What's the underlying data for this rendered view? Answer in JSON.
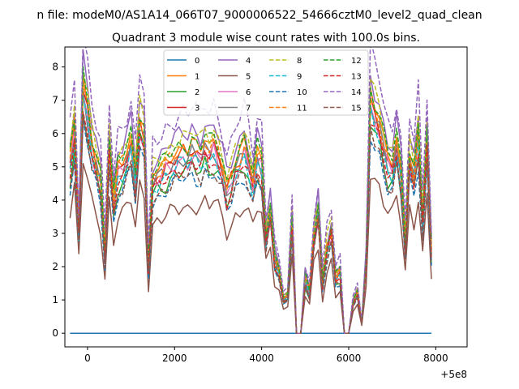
{
  "suptitle": "n file: modeM0/AS1A14_066T07_9000006522_54666cztM0_level2_quad_clean",
  "chart_data": {
    "type": "line",
    "title": "Quadrant 3 module wise count rates with 100.0s bins.",
    "xlabel": "",
    "ylabel": "",
    "x_offset_label": "+5e8",
    "xlim": [
      -520,
      8720
    ],
    "ylim": [
      -0.41,
      8.6
    ],
    "xticks": [
      0,
      2000,
      4000,
      6000,
      8000
    ],
    "xtick_labels": [
      "0",
      "2000",
      "4000",
      "6000",
      "8000"
    ],
    "yticks": [
      0,
      1,
      2,
      3,
      4,
      5,
      6,
      7,
      8
    ],
    "ytick_labels": [
      "0",
      "1",
      "2",
      "3",
      "4",
      "5",
      "6",
      "7",
      "8"
    ],
    "grid": false,
    "legend_position": "top-center",
    "x_start": -400,
    "x_step": 100,
    "gap_points": [
      48,
      63
    ],
    "profile_values": [
      5.0,
      6.0,
      3.0,
      7.2,
      6.5,
      5.5,
      5.0,
      4.5,
      2.3,
      5.5,
      3.8,
      4.8,
      4.9,
      5.2,
      5.6,
      4.5,
      6.2,
      5.8,
      2.0,
      4.5,
      4.6,
      4.7,
      4.9,
      5.0,
      5.1,
      5.2,
      5.3,
      5.2,
      5.4,
      5.3,
      5.2,
      5.5,
      5.3,
      5.5,
      5.2,
      4.8,
      4.2,
      4.5,
      4.9,
      5.1,
      5.4,
      5.0,
      4.4,
      5.2,
      5.0,
      2.8,
      3.6,
      2.2,
      1.8,
      1.0,
      1.1,
      3.3,
      0.0,
      0.0,
      1.6,
      1.2,
      2.8,
      3.6,
      1.5,
      2.5,
      3.0,
      1.6,
      1.8,
      0.0,
      0.0,
      0.9,
      1.2,
      0.3,
      2.1,
      6.8,
      6.4,
      6.1,
      5.5,
      5.0,
      4.9,
      5.6,
      4.7,
      2.6,
      5.2,
      4.6,
      5.8,
      3.3,
      5.7,
      2.4
    ],
    "series": [
      {
        "name": "0",
        "color": "#1f77b4",
        "dash": false,
        "constant": 0.0
      },
      {
        "name": "1",
        "color": "#ff7f0e",
        "dash": false,
        "scale": 1.06,
        "jitter": 0.15
      },
      {
        "name": "2",
        "color": "#2ca02c",
        "dash": false,
        "scale": 0.93,
        "jitter": 0.25
      },
      {
        "name": "3",
        "color": "#d62728",
        "dash": false,
        "scale": 1.02,
        "jitter": 0.18
      },
      {
        "name": "4",
        "color": "#9467bd",
        "dash": false,
        "scale": 1.14,
        "jitter": 0.22
      },
      {
        "name": "5",
        "color": "#8c564b",
        "dash": false,
        "scale": 0.72,
        "jitter": 0.2
      },
      {
        "name": "6",
        "color": "#e377c2",
        "dash": false,
        "scale": 0.99,
        "jitter": 0.2
      },
      {
        "name": "7",
        "color": "#7f7f7f",
        "dash": false,
        "scale": 1.0,
        "jitter": 0.22
      },
      {
        "name": "8",
        "color": "#bcbd22",
        "dash": true,
        "scale": 1.12,
        "jitter": 0.2
      },
      {
        "name": "9",
        "color": "#17becf",
        "dash": true,
        "scale": 0.97,
        "jitter": 0.2
      },
      {
        "name": "10",
        "color": "#1f77b4",
        "dash": true,
        "scale": 0.88,
        "jitter": 0.2
      },
      {
        "name": "11",
        "color": "#ff7f0e",
        "dash": true,
        "scale": 1.04,
        "jitter": 0.2
      },
      {
        "name": "12",
        "color": "#2ca02c",
        "dash": true,
        "scale": 1.08,
        "jitter": 0.2
      },
      {
        "name": "13",
        "color": "#d62728",
        "dash": true,
        "scale": 0.95,
        "jitter": 0.2
      },
      {
        "name": "14",
        "color": "#9467bd",
        "dash": true,
        "scale": 1.26,
        "jitter": 0.22
      },
      {
        "name": "15",
        "color": "#8c564b",
        "dash": true,
        "scale": 0.9,
        "jitter": 0.2
      }
    ]
  }
}
